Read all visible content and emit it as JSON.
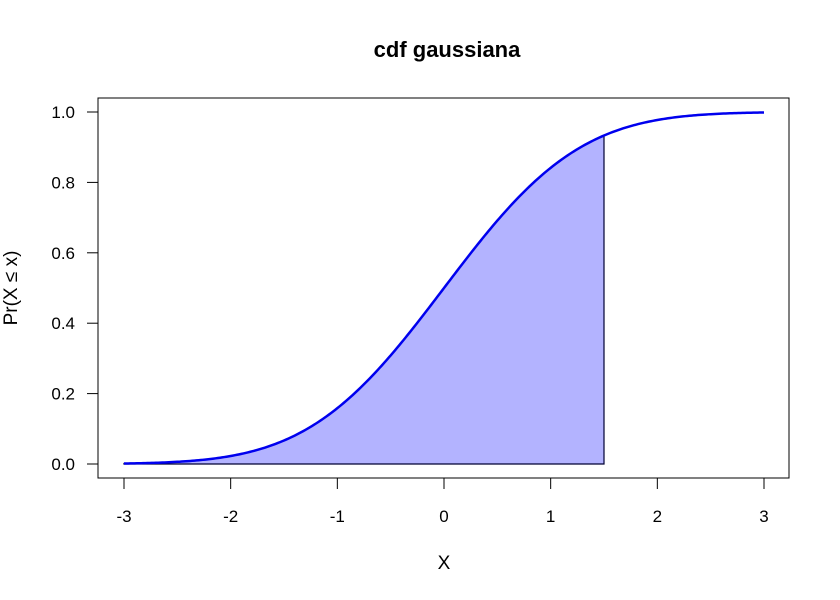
{
  "chart_data": {
    "type": "area",
    "title": "cdf gaussiana",
    "xlabel": "X",
    "ylabel": "Pr(X ≤ x)",
    "xlim": [
      -3,
      3
    ],
    "ylim": [
      0,
      1
    ],
    "x_ticks": [
      -3,
      -2,
      -1,
      0,
      1,
      2,
      3
    ],
    "y_ticks": [
      0.0,
      0.2,
      0.4,
      0.6,
      0.8,
      1.0
    ],
    "x_tick_labels": [
      "-3",
      "-2",
      "-1",
      "0",
      "1",
      "2",
      "3"
    ],
    "y_tick_labels": [
      "0.0",
      "0.2",
      "0.4",
      "0.6",
      "0.8",
      "1.0"
    ],
    "grid": false,
    "series": [
      {
        "function": "standard normal cdf",
        "x": [
          -3.0,
          -2.5,
          -2.0,
          -1.5,
          -1.0,
          -0.5,
          0.0,
          0.5,
          1.0,
          1.5,
          2.0,
          2.5,
          3.0
        ],
        "values": [
          0.0013,
          0.0062,
          0.0228,
          0.0668,
          0.1587,
          0.3085,
          0.5,
          0.6915,
          0.8413,
          0.9332,
          0.9772,
          0.9938,
          0.9987
        ],
        "color": "#0000ee"
      }
    ],
    "shaded_region": {
      "x_from": -3,
      "x_to": 1.5,
      "fill": "#b3b3ff",
      "stroke": "#000033"
    }
  }
}
